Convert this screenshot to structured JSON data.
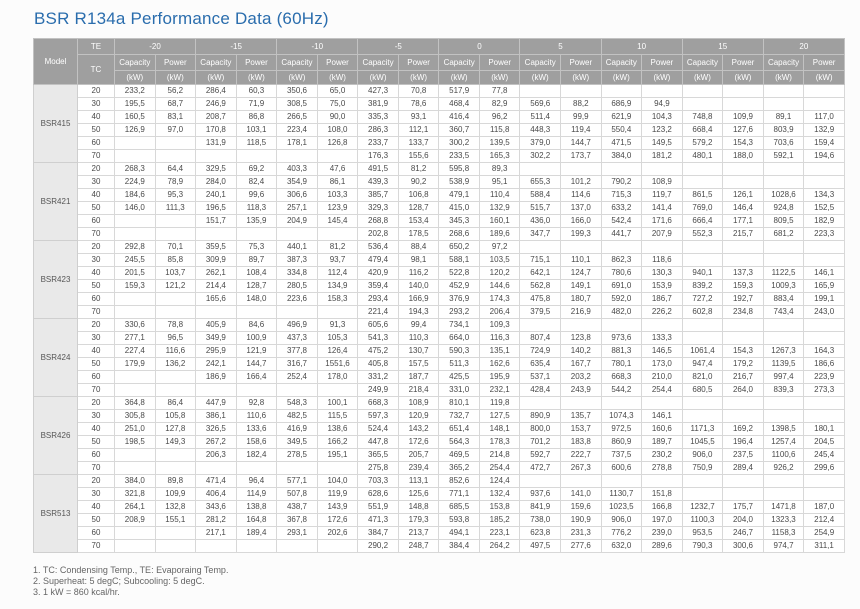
{
  "title": "BSR R134a Performance Data (60Hz)",
  "colors": {
    "title_blue": "#2a6dad",
    "header_gray": "#9f9f9f",
    "model_column_gray": "#e9e9e9",
    "header_text": "#ffffff"
  },
  "table": {
    "corner_label": "Model",
    "te_label": "TE",
    "tc_label": "TC",
    "capacity_label": "Capacity",
    "power_label": "Power",
    "unit_label": "(kW)",
    "te_values": [
      "-20",
      "-15",
      "-10",
      "-5",
      "0",
      "5",
      "10",
      "15",
      "20"
    ],
    "tc_values": [
      "20",
      "30",
      "40",
      "50",
      "60",
      "70"
    ],
    "models": [
      {
        "name": "BSR415",
        "rows": [
          {
            "tc": "20",
            "v": [
              "233,2",
              "56,2",
              "286,4",
              "60,3",
              "350,6",
              "65,0",
              "427,3",
              "70,8",
              "517,9",
              "77,8",
              "",
              "",
              "",
              "",
              "",
              "",
              "",
              ""
            ]
          },
          {
            "tc": "30",
            "v": [
              "195,5",
              "68,7",
              "246,9",
              "71,9",
              "308,5",
              "75,0",
              "381,9",
              "78,6",
              "468,4",
              "82,9",
              "569,6",
              "88,2",
              "686,9",
              "94,9",
              "",
              "",
              "",
              ""
            ]
          },
          {
            "tc": "40",
            "v": [
              "160,5",
              "83,1",
              "208,7",
              "86,8",
              "266,5",
              "90,0",
              "335,3",
              "93,1",
              "416,4",
              "96,2",
              "511,4",
              "99,9",
              "621,9",
              "104,3",
              "748,8",
              "109,9",
              "89,1",
              "117,0"
            ]
          },
          {
            "tc": "50",
            "v": [
              "126,9",
              "97,0",
              "170,8",
              "103,1",
              "223,4",
              "108,0",
              "286,3",
              "112,1",
              "360,7",
              "115,8",
              "448,3",
              "119,4",
              "550,4",
              "123,2",
              "668,4",
              "127,6",
              "803,9",
              "132,9"
            ]
          },
          {
            "tc": "60",
            "v": [
              "",
              "",
              "131,9",
              "118,5",
              "178,1",
              "126,8",
              "233,7",
              "133,7",
              "300,2",
              "139,5",
              "379,0",
              "144,7",
              "471,5",
              "149,5",
              "579,2",
              "154,3",
              "703,6",
              "159,4"
            ]
          },
          {
            "tc": "70",
            "v": [
              "",
              "",
              "",
              "",
              "",
              "",
              "176,3",
              "155,6",
              "233,5",
              "165,3",
              "302,2",
              "173,7",
              "384,0",
              "181,2",
              "480,1",
              "188,0",
              "592,1",
              "194,6"
            ]
          }
        ]
      },
      {
        "name": "BSR421",
        "rows": [
          {
            "tc": "20",
            "v": [
              "268,3",
              "64,4",
              "329,5",
              "69,2",
              "403,3",
              "47,6",
              "491,5",
              "81,2",
              "595,8",
              "89,3",
              "",
              "",
              "",
              "",
              "",
              "",
              "",
              ""
            ]
          },
          {
            "tc": "30",
            "v": [
              "224,9",
              "78,9",
              "284,0",
              "82,4",
              "354,9",
              "86,1",
              "439,3",
              "90,2",
              "538,9",
              "95,1",
              "655,3",
              "101,2",
              "790,2",
              "108,9",
              "",
              "",
              "",
              ""
            ]
          },
          {
            "tc": "40",
            "v": [
              "184,6",
              "95,3",
              "240,1",
              "99,6",
              "306,6",
              "103,3",
              "385,7",
              "106,8",
              "479,1",
              "110,4",
              "588,4",
              "114,6",
              "715,3",
              "119,7",
              "861,5",
              "126,1",
              "1028,6",
              "134,3"
            ]
          },
          {
            "tc": "50",
            "v": [
              "146,0",
              "111,3",
              "196,5",
              "118,3",
              "257,1",
              "123,9",
              "329,3",
              "128,7",
              "415,0",
              "132,9",
              "515,7",
              "137,0",
              "633,2",
              "141,4",
              "769,0",
              "146,4",
              "924,8",
              "152,5"
            ]
          },
          {
            "tc": "60",
            "v": [
              "",
              "",
              "151,7",
              "135,9",
              "204,9",
              "145,4",
              "268,8",
              "153,4",
              "345,3",
              "160,1",
              "436,0",
              "166,0",
              "542,4",
              "171,6",
              "666,4",
              "177,1",
              "809,5",
              "182,9"
            ]
          },
          {
            "tc": "70",
            "v": [
              "",
              "",
              "",
              "",
              "",
              "",
              "202,8",
              "178,5",
              "268,6",
              "189,6",
              "347,7",
              "199,3",
              "441,7",
              "207,9",
              "552,3",
              "215,7",
              "681,2",
              "223,3"
            ]
          }
        ]
      },
      {
        "name": "BSR423",
        "rows": [
          {
            "tc": "20",
            "v": [
              "292,8",
              "70,1",
              "359,5",
              "75,3",
              "440,1",
              "81,2",
              "536,4",
              "88,4",
              "650,2",
              "97,2",
              "",
              "",
              "",
              "",
              "",
              "",
              "",
              ""
            ]
          },
          {
            "tc": "30",
            "v": [
              "245,5",
              "85,8",
              "309,9",
              "89,7",
              "387,3",
              "93,7",
              "479,4",
              "98,1",
              "588,1",
              "103,5",
              "715,1",
              "110,1",
              "862,3",
              "118,6",
              "",
              "",
              "",
              ""
            ]
          },
          {
            "tc": "40",
            "v": [
              "201,5",
              "103,7",
              "262,1",
              "108,4",
              "334,8",
              "112,4",
              "420,9",
              "116,2",
              "522,8",
              "120,2",
              "642,1",
              "124,7",
              "780,6",
              "130,3",
              "940,1",
              "137,3",
              "1122,5",
              "146,1"
            ]
          },
          {
            "tc": "50",
            "v": [
              "159,3",
              "121,2",
              "214,4",
              "128,7",
              "280,5",
              "134,9",
              "359,4",
              "140,0",
              "452,9",
              "144,6",
              "562,8",
              "149,1",
              "691,0",
              "153,9",
              "839,2",
              "159,3",
              "1009,3",
              "165,9"
            ]
          },
          {
            "tc": "60",
            "v": [
              "",
              "",
              "165,6",
              "148,0",
              "223,6",
              "158,3",
              "293,4",
              "166,9",
              "376,9",
              "174,3",
              "475,8",
              "180,7",
              "592,0",
              "186,7",
              "727,2",
              "192,7",
              "883,4",
              "199,1"
            ]
          },
          {
            "tc": "70",
            "v": [
              "",
              "",
              "",
              "",
              "",
              "",
              "221,4",
              "194,3",
              "293,2",
              "206,4",
              "379,5",
              "216,9",
              "482,0",
              "226,2",
              "602,8",
              "234,8",
              "743,4",
              "243,0"
            ]
          }
        ]
      },
      {
        "name": "BSR424",
        "rows": [
          {
            "tc": "20",
            "v": [
              "330,6",
              "78,8",
              "405,9",
              "84,6",
              "496,9",
              "91,3",
              "605,6",
              "99,4",
              "734,1",
              "109,3",
              "",
              "",
              "",
              "",
              "",
              "",
              "",
              ""
            ]
          },
          {
            "tc": "30",
            "v": [
              "277,1",
              "96,5",
              "349,9",
              "100,9",
              "437,3",
              "105,3",
              "541,3",
              "110,3",
              "664,0",
              "116,3",
              "807,4",
              "123,8",
              "973,6",
              "133,3",
              "",
              "",
              "",
              ""
            ]
          },
          {
            "tc": "40",
            "v": [
              "227,4",
              "116,6",
              "295,9",
              "121,9",
              "377,8",
              "126,4",
              "475,2",
              "130,7",
              "590,3",
              "135,1",
              "724,9",
              "140,2",
              "881,3",
              "146,5",
              "1061,4",
              "154,3",
              "1267,3",
              "164,3"
            ]
          },
          {
            "tc": "50",
            "v": [
              "179,9",
              "136,2",
              "242,1",
              "144,7",
              "316,7",
              "1551,6",
              "405,8",
              "157,5",
              "511,3",
              "162,6",
              "635,4",
              "167,7",
              "780,1",
              "173,0",
              "947,4",
              "179,2",
              "1139,5",
              "186,6"
            ]
          },
          {
            "tc": "60",
            "v": [
              "",
              "",
              "186,9",
              "166,4",
              "252,4",
              "178,0",
              "331,2",
              "187,7",
              "425,5",
              "195,9",
              "537,1",
              "203,2",
              "668,3",
              "210,0",
              "821,0",
              "216,7",
              "997,4",
              "223,9"
            ]
          },
          {
            "tc": "70",
            "v": [
              "",
              "",
              "",
              "",
              "",
              "",
              "249,9",
              "218,4",
              "331,0",
              "232,1",
              "428,4",
              "243,9",
              "544,2",
              "254,4",
              "680,5",
              "264,0",
              "839,3",
              "273,3"
            ]
          }
        ]
      },
      {
        "name": "BSR426",
        "rows": [
          {
            "tc": "20",
            "v": [
              "364,8",
              "86,4",
              "447,9",
              "92,8",
              "548,3",
              "100,1",
              "668,3",
              "108,9",
              "810,1",
              "119,8",
              "",
              "",
              "",
              "",
              "",
              "",
              "",
              ""
            ]
          },
          {
            "tc": "30",
            "v": [
              "305,8",
              "105,8",
              "386,1",
              "110,6",
              "482,5",
              "115,5",
              "597,3",
              "120,9",
              "732,7",
              "127,5",
              "890,9",
              "135,7",
              "1074,3",
              "146,1",
              "",
              "",
              "",
              ""
            ]
          },
          {
            "tc": "40",
            "v": [
              "251,0",
              "127,8",
              "326,5",
              "133,6",
              "416,9",
              "138,6",
              "524,4",
              "143,2",
              "651,4",
              "148,1",
              "800,0",
              "153,7",
              "972,5",
              "160,6",
              "1171,3",
              "169,2",
              "1398,5",
              "180,1"
            ]
          },
          {
            "tc": "50",
            "v": [
              "198,5",
              "149,3",
              "267,2",
              "158,6",
              "349,5",
              "166,2",
              "447,8",
              "172,6",
              "564,3",
              "178,3",
              "701,2",
              "183,8",
              "860,9",
              "189,7",
              "1045,5",
              "196,4",
              "1257,4",
              "204,5"
            ]
          },
          {
            "tc": "60",
            "v": [
              "",
              "",
              "206,3",
              "182,4",
              "278,5",
              "195,1",
              "365,5",
              "205,7",
              "469,5",
              "214,8",
              "592,7",
              "222,7",
              "737,5",
              "230,2",
              "906,0",
              "237,5",
              "1100,6",
              "245,4"
            ]
          },
          {
            "tc": "70",
            "v": [
              "",
              "",
              "",
              "",
              "",
              "",
              "275,8",
              "239,4",
              "365,2",
              "254,4",
              "472,7",
              "267,3",
              "600,6",
              "278,8",
              "750,9",
              "289,4",
              "926,2",
              "299,6"
            ]
          }
        ]
      },
      {
        "name": "BSR513",
        "rows": [
          {
            "tc": "20",
            "v": [
              "384,0",
              "89,8",
              "471,4",
              "96,4",
              "577,1",
              "104,0",
              "703,3",
              "113,1",
              "852,6",
              "124,4",
              "",
              "",
              "",
              "",
              "",
              "",
              "",
              ""
            ]
          },
          {
            "tc": "30",
            "v": [
              "321,8",
              "109,9",
              "406,4",
              "114,9",
              "507,8",
              "119,9",
              "628,6",
              "125,6",
              "771,1",
              "132,4",
              "937,6",
              "141,0",
              "1130,7",
              "151,8",
              "",
              "",
              "",
              ""
            ]
          },
          {
            "tc": "40",
            "v": [
              "264,1",
              "132,8",
              "343,6",
              "138,8",
              "438,7",
              "143,9",
              "551,9",
              "148,8",
              "685,5",
              "153,8",
              "841,9",
              "159,6",
              "1023,5",
              "166,8",
              "1232,7",
              "175,7",
              "1471,8",
              "187,0"
            ]
          },
          {
            "tc": "50",
            "v": [
              "208,9",
              "155,1",
              "281,2",
              "164,8",
              "367,8",
              "172,6",
              "471,3",
              "179,3",
              "593,8",
              "185,2",
              "738,0",
              "190,9",
              "906,0",
              "197,0",
              "1100,3",
              "204,0",
              "1323,3",
              "212,4"
            ]
          },
          {
            "tc": "60",
            "v": [
              "",
              "",
              "217,1",
              "189,4",
              "293,1",
              "202,6",
              "384,7",
              "213,7",
              "494,1",
              "223,1",
              "623,8",
              "231,3",
              "776,2",
              "239,0",
              "953,5",
              "246,7",
              "1158,3",
              "254,9"
            ]
          },
          {
            "tc": "70",
            "v": [
              "",
              "",
              "",
              "",
              "",
              "",
              "290,2",
              "248,7",
              "384,4",
              "264,2",
              "497,5",
              "277,6",
              "632,0",
              "289,6",
              "790,3",
              "300,6",
              "974,7",
              "311,1"
            ]
          }
        ]
      }
    ]
  },
  "notes": [
    "1. TC: Condensing Temp., TE: Evaporaing Temp.",
    "2. Superheat: 5 degC; Subcooling: 5 degC.",
    "3. 1 kW = 860 kcal/hr."
  ]
}
